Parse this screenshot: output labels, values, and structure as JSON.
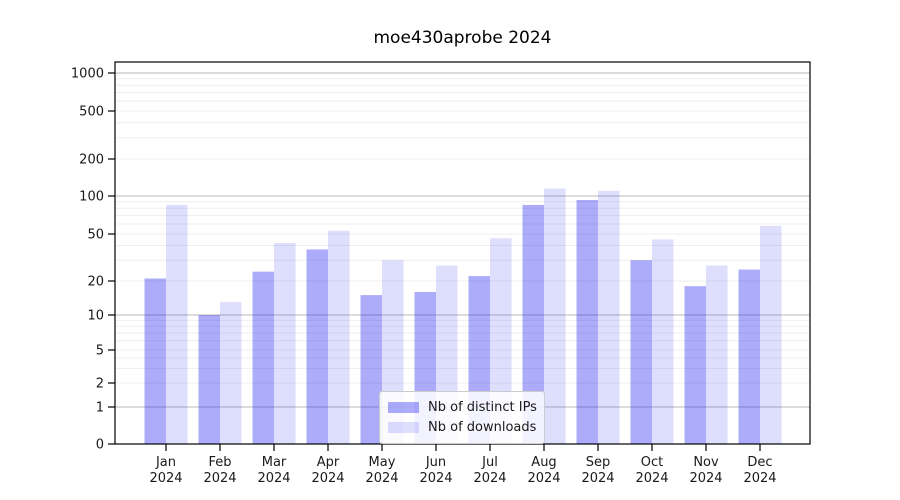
{
  "title": "moe430aprobe 2024",
  "chart_data": {
    "type": "bar",
    "title": "moe430aprobe 2024",
    "xlabel": "",
    "ylabel": "",
    "yscale": "symlog",
    "grid": true,
    "legend_position": "lower center",
    "ylim": [
      0,
      1250
    ],
    "ytick_labels": [
      "1000",
      "500",
      "200",
      "100",
      "50",
      "20",
      "10",
      "5",
      "2",
      "1",
      "0"
    ],
    "ytick_values": [
      1000,
      500,
      200,
      100,
      50,
      20,
      10,
      5,
      2,
      1,
      0
    ],
    "categories": [
      "Jan 2024",
      "Feb 2024",
      "Mar 2024",
      "Apr 2024",
      "May 2024",
      "Jun 2024",
      "Jul 2024",
      "Aug 2024",
      "Sep 2024",
      "Oct 2024",
      "Nov 2024",
      "Dec 2024"
    ],
    "series": [
      {
        "name": "Nb of distinct IPs",
        "color": "#1212f0",
        "alpha": 0.35,
        "values": [
          21,
          10,
          24,
          37,
          15,
          16,
          22,
          85,
          93,
          30,
          18,
          25
        ]
      },
      {
        "name": "Nb of downloads",
        "color": "#1212f0",
        "alpha": 0.14,
        "values": [
          85,
          13,
          42,
          53,
          30,
          27,
          46,
          115,
          110,
          45,
          27,
          58
        ]
      }
    ]
  },
  "colors": {
    "major_gridline": "#c8c8c8",
    "minor_gridline": "#efefef",
    "axis_frame": "#000000",
    "tick_text": "#1a1a1a"
  }
}
